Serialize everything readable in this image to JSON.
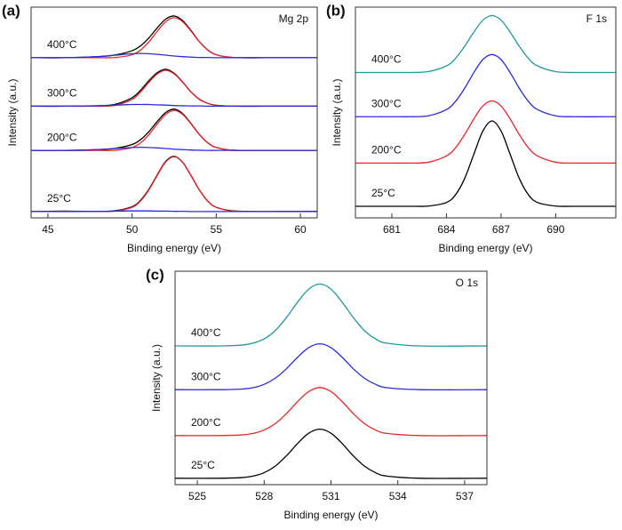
{
  "chart_data": [
    {
      "type": "line",
      "panel_label": "(a)",
      "annotation": "Mg 2p",
      "x_label": "Binding energy (eV)",
      "y_label": "Intensity (a.u.)",
      "xlim": [
        44,
        61
      ],
      "xticks": [
        45,
        50,
        55,
        60
      ],
      "ylim": [
        0,
        100
      ],
      "x": [
        44,
        46,
        48,
        49,
        50,
        50.5,
        51,
        51.5,
        52,
        52.5,
        53,
        53.5,
        54,
        54.5,
        55,
        56,
        58,
        61
      ],
      "series": [
        {
          "name": "400°C",
          "color": "#000000",
          "values": [
            76,
            76,
            76.5,
            77.3,
            79.3,
            81.6,
            85.4,
            90.2,
            94.3,
            95.8,
            93.6,
            88.9,
            83.6,
            79.7,
            77.4,
            76.1,
            76,
            76
          ]
        },
        {
          "color": "#e8262b",
          "values": [
            76,
            76,
            76,
            76.1,
            77.4,
            79.6,
            83.5,
            88.6,
            93.1,
            95,
            93.1,
            88.6,
            83.5,
            79.6,
            77.4,
            76.1,
            76,
            76
          ]
        },
        {
          "color": "#2a2ae0",
          "values": [
            76,
            76,
            76.5,
            77.2,
            77.9,
            78,
            77.9,
            77.6,
            77.2,
            76.8,
            76.5,
            76.3,
            76.1,
            76.1,
            76,
            76,
            76,
            76
          ]
        },
        {
          "name": "300°C",
          "color": "#000000",
          "values": [
            53,
            53,
            53.2,
            53.9,
            57,
            60.5,
            65.1,
            68.9,
            70.5,
            68.6,
            64.5,
            59.8,
            56.3,
            54.3,
            53.4,
            53,
            53,
            53
          ]
        },
        {
          "color": "#e8262b",
          "values": [
            53,
            53,
            53,
            53.4,
            56.2,
            59.7,
            64.3,
            68.3,
            70,
            68.3,
            64.3,
            59.7,
            56.2,
            54.3,
            53.4,
            53,
            53,
            53
          ]
        },
        {
          "color": "#2a2ae0",
          "values": [
            53,
            53,
            53.2,
            53.5,
            53.8,
            53.8,
            53.8,
            53.6,
            53.5,
            53.3,
            53.2,
            53.1,
            53.1,
            53,
            53,
            53,
            53,
            53
          ]
        },
        {
          "name": "200°C",
          "color": "#000000",
          "values": [
            32,
            32,
            32.4,
            33,
            34.8,
            37.1,
            40.9,
            45.8,
            50,
            51.6,
            49.5,
            44.8,
            39.6,
            35.6,
            33.4,
            32.1,
            32,
            32
          ]
        },
        {
          "color": "#e8262b",
          "values": [
            32,
            32,
            32,
            32.1,
            33.4,
            35.6,
            39.5,
            44.6,
            49.1,
            51,
            49.1,
            44.6,
            39.5,
            35.6,
            33.4,
            32.1,
            32,
            32
          ]
        },
        {
          "color": "#2a2ae0",
          "values": [
            32,
            32,
            32.4,
            32.9,
            33.4,
            33.5,
            33.4,
            33.2,
            32.9,
            32.6,
            32.4,
            32.2,
            32.1,
            32,
            32,
            32,
            32,
            32
          ]
        },
        {
          "name": "25°C",
          "color": "#000000",
          "values": [
            3,
            3.2,
            3,
            3.4,
            5.3,
            8.3,
            13.6,
            20.5,
            26.8,
            29.2,
            26.4,
            20,
            13.2,
            7.9,
            5,
            3.3,
            3,
            3.1
          ]
        },
        {
          "color": "#e8262b",
          "values": [
            3,
            3,
            3,
            3.2,
            5,
            8,
            13.3,
            20.2,
            26.5,
            29,
            26.5,
            20.2,
            13.3,
            8,
            5,
            3.2,
            3,
            3
          ]
        },
        {
          "color": "#2a2ae0",
          "values": [
            3,
            3,
            3.1,
            3.2,
            3.3,
            3.3,
            3.3,
            3.2,
            3.2,
            3.1,
            3.1,
            3,
            3,
            3,
            3,
            3,
            3,
            3
          ]
        }
      ]
    },
    {
      "type": "line",
      "panel_label": "(b)",
      "annotation": "F 1s",
      "x_label": "Binding energy (eV)",
      "y_label": "Intensity (a.u.)",
      "xlim": [
        679,
        693.3
      ],
      "xticks": [
        681,
        684,
        687,
        690
      ],
      "ylim": [
        0,
        100
      ],
      "x": [
        679,
        681,
        682,
        683,
        684,
        684.5,
        685,
        685.5,
        686,
        686.5,
        687,
        687.5,
        688,
        688.5,
        689,
        690,
        691,
        693.3
      ],
      "series": [
        {
          "name": "400°C",
          "color": "#1f9a9a",
          "values": [
            69,
            69,
            69,
            69.4,
            72.1,
            75.7,
            81.4,
            88.1,
            93.8,
            96,
            93.8,
            88.1,
            81.4,
            75.7,
            72.1,
            69.4,
            69,
            69
          ]
        },
        {
          "name": "300°C",
          "color": "#2a2ae0",
          "values": [
            48,
            48,
            48,
            48.4,
            51.4,
            55.3,
            61.5,
            68.9,
            75.1,
            77.5,
            75.1,
            68.9,
            61.5,
            55.3,
            51.4,
            48.4,
            48,
            48
          ]
        },
        {
          "name": "200°C",
          "color": "#e8262b",
          "values": [
            26,
            26,
            26,
            26.4,
            29.4,
            33.3,
            39.5,
            46.9,
            53.1,
            55.5,
            53.1,
            46.9,
            39.5,
            33.3,
            29.4,
            26.4,
            26,
            26
          ]
        },
        {
          "name": "25°C",
          "color": "#000000",
          "values": [
            5.5,
            5.5,
            5.5,
            5.6,
            7.3,
            11,
            18.7,
            30.1,
            41.2,
            46,
            41.2,
            30.1,
            18.7,
            11,
            7.3,
            5.6,
            5.5,
            5.5
          ]
        }
      ]
    },
    {
      "type": "line",
      "panel_label": "(c)",
      "annotation": "O 1s",
      "x_label": "Binding energy (eV)",
      "y_label": "Intensity (a.u.)",
      "xlim": [
        524,
        538
      ],
      "xticks": [
        525,
        528,
        531,
        534,
        537
      ],
      "ylim": [
        0,
        100
      ],
      "x": [
        524,
        526,
        527,
        527.5,
        528,
        528.5,
        529,
        529.5,
        530,
        530.5,
        531,
        531.5,
        532,
        532.5,
        533,
        533.5,
        535,
        538
      ],
      "series": [
        {
          "name": "400°C",
          "color": "#1f9a9a",
          "values": [
            65,
            65,
            65.4,
            66.3,
            68.3,
            72.2,
            78.3,
            85.5,
            91.6,
            94,
            91.6,
            85.5,
            78.3,
            72.2,
            68.3,
            66.3,
            65,
            65
          ]
        },
        {
          "name": "300°C",
          "color": "#2a2ae0",
          "values": [
            44.5,
            44.5,
            44.8,
            45.4,
            47,
            49.9,
            54.3,
            59.7,
            64.2,
            66,
            64.2,
            59.7,
            54.3,
            49.9,
            47,
            45.4,
            44.5,
            44.5
          ]
        },
        {
          "name": "200°C",
          "color": "#e8262b",
          "values": [
            23,
            23,
            23.3,
            24,
            25.6,
            28.6,
            33.3,
            38.9,
            43.6,
            45.5,
            43.6,
            38.9,
            33.3,
            28.6,
            25.6,
            24,
            23,
            23
          ]
        },
        {
          "name": "25°C",
          "color": "#000000",
          "values": [
            3,
            3,
            3.3,
            4,
            5.6,
            8.7,
            13.5,
            19.3,
            24.1,
            26,
            24.1,
            19.3,
            13.5,
            8.7,
            5.6,
            4,
            3,
            3
          ]
        }
      ]
    }
  ]
}
